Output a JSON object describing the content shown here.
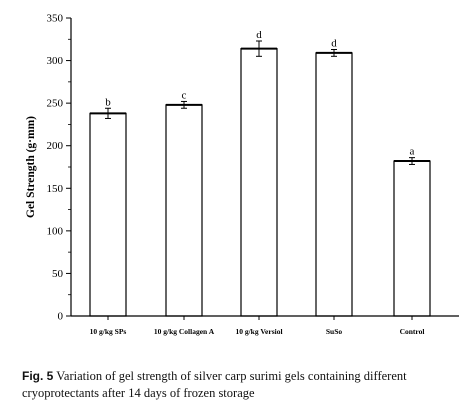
{
  "chart_data": {
    "type": "bar",
    "ylabel": "Gel Strength (g·mm)",
    "ylim": [
      0,
      350
    ],
    "yticks": [
      0,
      50,
      100,
      150,
      200,
      250,
      300,
      350
    ],
    "categories": [
      "10 g/kg SPs",
      "10 g/kg Collagen A",
      "10 g/kg Versiol",
      "SuSo",
      "Control"
    ],
    "values": [
      238,
      248,
      314,
      309,
      182
    ],
    "errors": [
      6,
      4,
      9,
      4,
      4
    ],
    "significance": [
      "b",
      "c",
      "d",
      "d",
      "a"
    ],
    "grid": false
  },
  "caption": {
    "figure_label": "Fig. 5",
    "text": "Variation of gel strength of silver carp surimi gels containing different cryoprotectants after 14 days of frozen storage"
  }
}
